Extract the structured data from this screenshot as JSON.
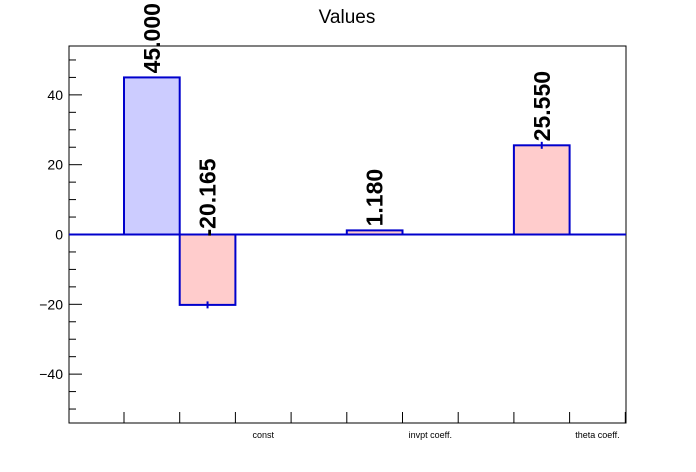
{
  "chart_data": {
    "type": "bar",
    "title": "Values",
    "categories": [
      "const",
      "invpt coeff.",
      "theta coeff."
    ],
    "ylim": [
      -54,
      54
    ],
    "y_ticks": [
      -40,
      -20,
      0,
      20,
      40
    ],
    "y_tick_labels": [
      "−40",
      "−20",
      "0",
      "20",
      "40"
    ],
    "grid": false,
    "bars": [
      {
        "bin": 1,
        "value": 45.0,
        "error": 0.0,
        "label": "45.000",
        "color": "#ccccff"
      },
      {
        "bin": 2,
        "value": -20.165,
        "error": 1.0,
        "label": "-20.165",
        "color": "#ffcccc"
      },
      {
        "bin": 5,
        "value": 1.18,
        "error": 0.2,
        "label": "1.180",
        "color": "#ffcccc"
      },
      {
        "bin": 8,
        "value": 25.55,
        "error": 1.0,
        "label": "25.550",
        "color": "#ffcccc"
      }
    ],
    "category_bins": [
      3,
      6,
      9
    ],
    "n_bins": 10,
    "outline_color": "#0000cc"
  }
}
